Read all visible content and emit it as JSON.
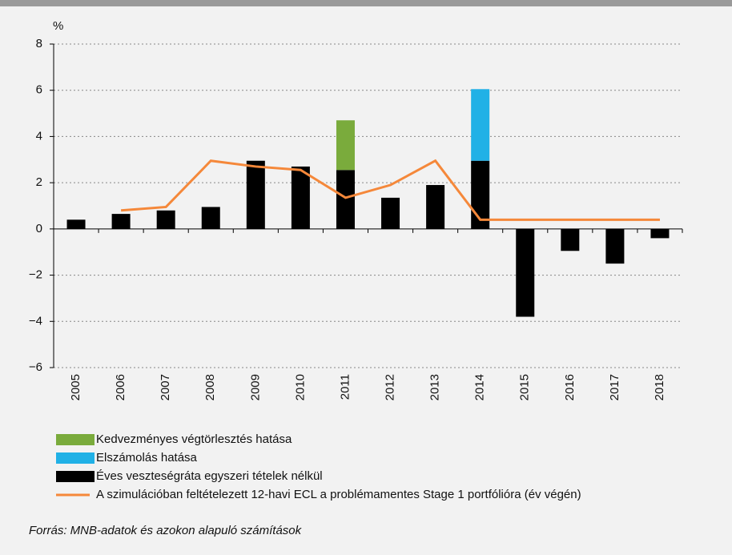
{
  "chart_data": {
    "type": "bar",
    "y_unit": "%",
    "categories": [
      "2005",
      "2006",
      "2007",
      "2008",
      "2009",
      "2010",
      "2011",
      "2012",
      "2013",
      "2014",
      "2015",
      "2016",
      "2017",
      "2018"
    ],
    "series": [
      {
        "name": "Kedvezményes végtörlesztés hatása",
        "type": "bar",
        "color": "#7aab3c",
        "values": [
          null,
          null,
          null,
          null,
          null,
          null,
          2.15,
          null,
          null,
          null,
          null,
          null,
          null,
          null
        ]
      },
      {
        "name": "Elszámolás hatása",
        "type": "bar",
        "color": "#21b1e6",
        "values": [
          null,
          null,
          null,
          null,
          null,
          null,
          null,
          null,
          null,
          3.1,
          null,
          null,
          null,
          null
        ]
      },
      {
        "name": "Éves veszteségráta egyszeri tételek nélkül",
        "type": "bar",
        "color": "#000000",
        "values": [
          0.4,
          0.65,
          0.8,
          0.95,
          2.95,
          2.7,
          2.55,
          1.35,
          1.9,
          2.95,
          -3.8,
          -0.95,
          -1.5,
          -0.4
        ]
      },
      {
        "name": "A szimulációban feltételezett 12-havi ECL a problémamentes Stage 1 portfólióra (év végén)",
        "type": "line",
        "color": "#f5883a",
        "values": [
          null,
          0.8,
          0.95,
          2.95,
          2.7,
          2.55,
          1.35,
          1.9,
          2.95,
          0.4,
          0.4,
          0.4,
          0.4,
          0.4
        ]
      }
    ],
    "ylim": [
      -6,
      8
    ],
    "yticks": [
      {
        "value": -6,
        "label": "−6"
      },
      {
        "value": -4,
        "label": "−4"
      },
      {
        "value": -2,
        "label": "−2"
      },
      0,
      2,
      4,
      6,
      8
    ],
    "grid": true,
    "source": "Forrás: MNB-adatok és azokon alapuló számítások"
  }
}
